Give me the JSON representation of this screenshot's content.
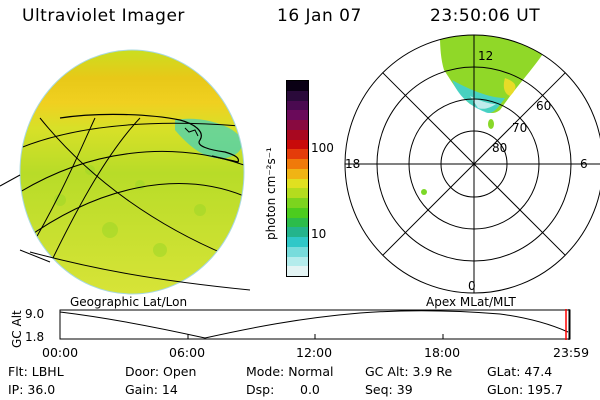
{
  "header": {
    "instrument": "Ultraviolet Imager",
    "date": "16 Jan 07",
    "time": "23:50:06 UT"
  },
  "colorbar": {
    "label": "photon cm⁻²s⁻¹",
    "ticks": [
      "100",
      "10"
    ],
    "colors": [
      "#0a0014",
      "#2a0a3a",
      "#4a0a50",
      "#6a0a5a",
      "#880a40",
      "#a80820",
      "#c80a0a",
      "#e43c0a",
      "#f07a0a",
      "#f0b414",
      "#e0e020",
      "#b4dc1e",
      "#7cd41e",
      "#4ccc1e",
      "#2cbc4a",
      "#24b48c",
      "#30c8c8",
      "#78dcdc",
      "#b4ecec",
      "#e4f4f4"
    ]
  },
  "polar": {
    "mlt_labels": {
      "top": "12",
      "bottom": "0",
      "left": "18",
      "right": "6"
    },
    "lat_labels": [
      "60",
      "70",
      "80"
    ]
  },
  "timeline": {
    "ylabel": "GC Alt",
    "ymax": "9.0",
    "ymin": "1.8",
    "left_title": "Geographic Lat/Lon",
    "right_title": "Apex MLat/MLT",
    "ticks": [
      "00:00",
      "06:00",
      "12:00",
      "18:00",
      "23:59"
    ],
    "cursor_color": "#ff0000"
  },
  "info": {
    "flt": "Flt: LBHL",
    "ip": "IP: 36.0",
    "door": "Door: Open",
    "gain": "Gain: 14",
    "mode": "Mode: Normal",
    "dsp_label": "Dsp:",
    "dsp_value": "0.0",
    "gcalt": "GC Alt: 3.9 Re",
    "seq": "Seq: 39",
    "glat": "GLat:  47.4",
    "glon": "GLon: 195.7"
  }
}
